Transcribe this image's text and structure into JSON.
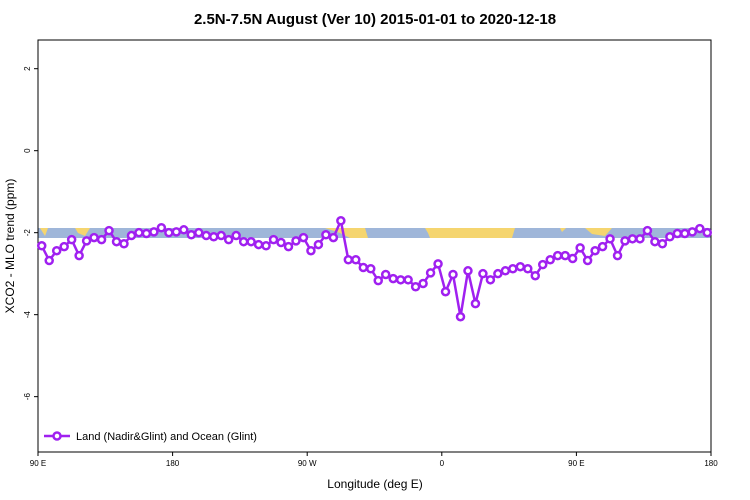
{
  "chart_data": {
    "type": "line",
    "title": "2.5N-7.5N August (Ver 10)   2015-01-01 to 2020-12-18",
    "x_label": "Longitude (deg E)",
    "y_label": "XCO2 - MLO trend (ppm)",
    "x": [
      92.5,
      97.5,
      102.5,
      107.5,
      112.5,
      117.5,
      122.5,
      127.5,
      132.5,
      137.5,
      142.5,
      147.5,
      152.5,
      157.5,
      162.5,
      167.5,
      172.5,
      177.5,
      182.5,
      187.5,
      192.5,
      197.5,
      202.5,
      207.5,
      212.5,
      217.5,
      222.5,
      227.5,
      232.5,
      237.5,
      242.5,
      247.5,
      252.5,
      257.5,
      262.5,
      267.5,
      272.5,
      277.5,
      282.5,
      287.5,
      292.5,
      297.5,
      302.5,
      307.5,
      312.5,
      317.5,
      322.5,
      327.5,
      332.5,
      337.5,
      342.5,
      347.5,
      352.5,
      357.5,
      362.5,
      367.5,
      372.5,
      377.5,
      382.5,
      387.5,
      392.5,
      397.5,
      402.5,
      407.5,
      412.5,
      417.5,
      422.5,
      427.5,
      432.5,
      437.5,
      442.5,
      447.5,
      452.5,
      457.5,
      462.5,
      467.5,
      472.5,
      477.5,
      482.5,
      487.5,
      492.5,
      497.5,
      502.5,
      507.5,
      512.5,
      517.5,
      522.5,
      527.5,
      532.5,
      537.5
    ],
    "series": [
      {
        "name": "Land (Nadir&Glint) and Ocean (Glint)",
        "color": "#a020f0",
        "values": [
          -2.32,
          -2.68,
          -2.44,
          -2.34,
          -2.17,
          -2.56,
          -2.2,
          -2.12,
          -2.17,
          -1.95,
          -2.22,
          -2.27,
          -2.07,
          -2.0,
          -2.02,
          -1.98,
          -1.88,
          -2.0,
          -1.98,
          -1.93,
          -2.05,
          -2.0,
          -2.07,
          -2.1,
          -2.07,
          -2.17,
          -2.07,
          -2.22,
          -2.22,
          -2.29,
          -2.32,
          -2.17,
          -2.24,
          -2.34,
          -2.2,
          -2.12,
          -2.44,
          -2.29,
          -2.05,
          -2.12,
          -1.71,
          -2.66,
          -2.66,
          -2.85,
          -2.88,
          -3.17,
          -3.02,
          -3.12,
          -3.15,
          -3.15,
          -3.32,
          -3.24,
          -2.98,
          -2.76,
          -3.44,
          -3.02,
          -4.05,
          -2.93,
          -3.73,
          -3.0,
          -3.15,
          -3.0,
          -2.93,
          -2.88,
          -2.83,
          -2.88,
          -3.05,
          -2.78,
          -2.66,
          -2.56,
          -2.56,
          -2.63,
          -2.37,
          -2.68,
          -2.44,
          -2.34,
          -2.15,
          -2.56,
          -2.2,
          -2.15,
          -2.15,
          -1.95,
          -2.22,
          -2.27,
          -2.1,
          -2.02,
          -2.02,
          -1.98,
          -1.9,
          -2.0
        ]
      }
    ],
    "xlim": [
      90,
      540
    ],
    "xticks": [
      {
        "value": 90,
        "label": "90 E"
      },
      {
        "value": 180,
        "label": "180"
      },
      {
        "value": 270,
        "label": "90 W"
      },
      {
        "value": 360,
        "label": "0"
      },
      {
        "value": 450,
        "label": "90 E"
      },
      {
        "value": 540,
        "label": "180"
      }
    ],
    "ylim": [
      -7.35,
      2.7
    ],
    "yticks": [
      -6,
      -4,
      -2,
      0,
      2
    ],
    "legend": "bottom-left"
  }
}
